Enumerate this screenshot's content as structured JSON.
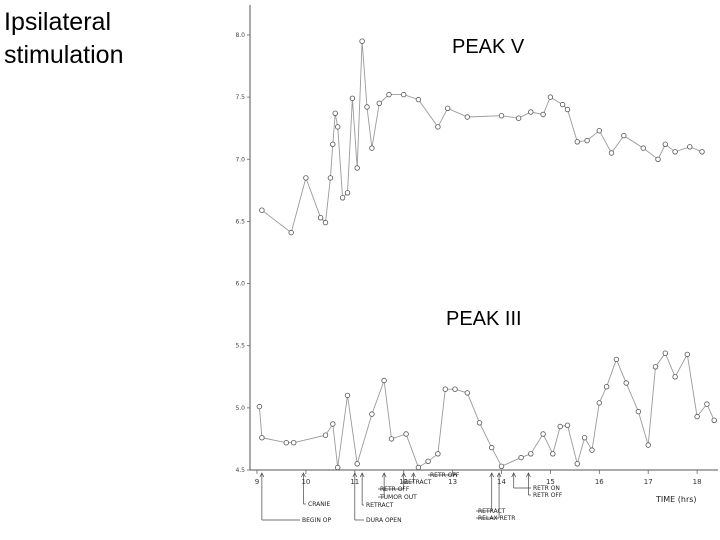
{
  "slide": {
    "title_line1": "Ipsilateral",
    "title_line2": "stimulation",
    "peak_v_label": "PEAK V",
    "peak_iii_label": "PEAK III"
  },
  "chart_data": {
    "type": "line",
    "xlabel": "TIME (hrs)",
    "xlim": [
      9,
      18.5
    ],
    "ylim": [
      4.5,
      8.5
    ],
    "grid": false,
    "x_ticks": [
      {
        "value": 9,
        "label": "9"
      },
      {
        "value": 10,
        "label": "10"
      },
      {
        "value": 11,
        "label": "11"
      },
      {
        "value": 12,
        "label": "12"
      },
      {
        "value": 13,
        "label": "13"
      },
      {
        "value": 14,
        "label": "14"
      },
      {
        "value": 15,
        "label": "15"
      },
      {
        "value": 16,
        "label": "16"
      },
      {
        "value": 17,
        "label": "17"
      },
      {
        "value": 18,
        "label": "18"
      }
    ],
    "y_ticks": [
      {
        "value": 8.0,
        "label": "8.0"
      },
      {
        "value": 7.5,
        "label": "7.5"
      },
      {
        "value": 7.0,
        "label": "7.0"
      },
      {
        "value": 6.5,
        "label": "6.5"
      },
      {
        "value": 6.0,
        "label": "6.0"
      },
      {
        "value": 5.5,
        "label": "5.5"
      },
      {
        "value": 5.0,
        "label": "5.0"
      },
      {
        "value": 4.5,
        "label": "4.5"
      }
    ],
    "series": [
      {
        "x": [
          9.1,
          9.7,
          10.0,
          10.3,
          10.4,
          10.5,
          10.55,
          10.6,
          10.65,
          10.75,
          10.85,
          10.95,
          11.05,
          11.15,
          11.25,
          11.35,
          11.5,
          11.7,
          12.0,
          12.3,
          12.7,
          12.9,
          13.3,
          14.0,
          14.35,
          14.6,
          14.85,
          15.0,
          15.25,
          15.35,
          15.55,
          15.75,
          16.0,
          16.25,
          16.5,
          16.9,
          17.2,
          17.35,
          17.55,
          17.85,
          18.1
        ],
        "values": [
          6.59,
          6.41,
          6.85,
          6.53,
          6.49,
          6.85,
          7.12,
          7.37,
          7.26,
          6.69,
          6.73,
          7.49,
          6.93,
          7.95,
          7.42,
          7.09,
          7.45,
          7.52,
          7.52,
          7.48,
          7.26,
          7.41,
          7.34,
          7.35,
          7.33,
          7.38,
          7.36,
          7.5,
          7.44,
          7.4,
          7.14,
          7.15,
          7.23,
          7.05,
          7.19,
          7.09,
          7.0,
          7.12,
          7.06,
          7.1,
          7.06
        ]
      },
      {
        "x": [
          9.05,
          9.1,
          9.6,
          9.75,
          10.4,
          10.55,
          10.65,
          10.85,
          11.05,
          11.35,
          11.6,
          11.75,
          12.05,
          12.3,
          12.5,
          12.7,
          12.85,
          13.05,
          13.3,
          13.55,
          13.8,
          14.0,
          14.4,
          14.6,
          14.85,
          15.05,
          15.2,
          15.35,
          15.55,
          15.7,
          15.85,
          16.0,
          16.15,
          16.35,
          16.55,
          16.8,
          17.0,
          17.15,
          17.35,
          17.55,
          17.8,
          18.0,
          18.2,
          18.35
        ],
        "values": [
          5.01,
          4.76,
          4.72,
          4.72,
          4.78,
          4.87,
          4.52,
          5.1,
          4.55,
          4.95,
          5.22,
          4.75,
          4.79,
          4.52,
          4.57,
          4.63,
          5.15,
          5.15,
          5.12,
          4.88,
          4.68,
          4.53,
          4.6,
          4.63,
          4.79,
          4.63,
          4.85,
          4.86,
          4.55,
          4.76,
          4.66,
          5.04,
          5.17,
          5.39,
          5.2,
          4.97,
          4.7,
          5.33,
          5.44,
          5.25,
          5.43,
          4.93,
          5.03,
          4.9
        ]
      }
    ],
    "annotations": [
      {
        "x": 9.1,
        "label": "BEGIN OP"
      },
      {
        "x": 9.95,
        "label": "CRANIE"
      },
      {
        "x": 11.0,
        "label": "DURA OPEN"
      },
      {
        "x": 11.15,
        "label": "RETRACT"
      },
      {
        "x": 11.6,
        "label": "TUMOR OUT"
      },
      {
        "x": 12.0,
        "label": "RETR OFF"
      },
      {
        "x": 12.2,
        "label": "RETRACT"
      },
      {
        "x": 13.05,
        "label": "RETR OFF"
      },
      {
        "x": 13.8,
        "label": "RETRACT"
      },
      {
        "x": 13.95,
        "label": "RELAX RETR"
      },
      {
        "x": 14.25,
        "label": "RETR ON"
      },
      {
        "x": 14.55,
        "label": "RETR OFF"
      }
    ]
  }
}
